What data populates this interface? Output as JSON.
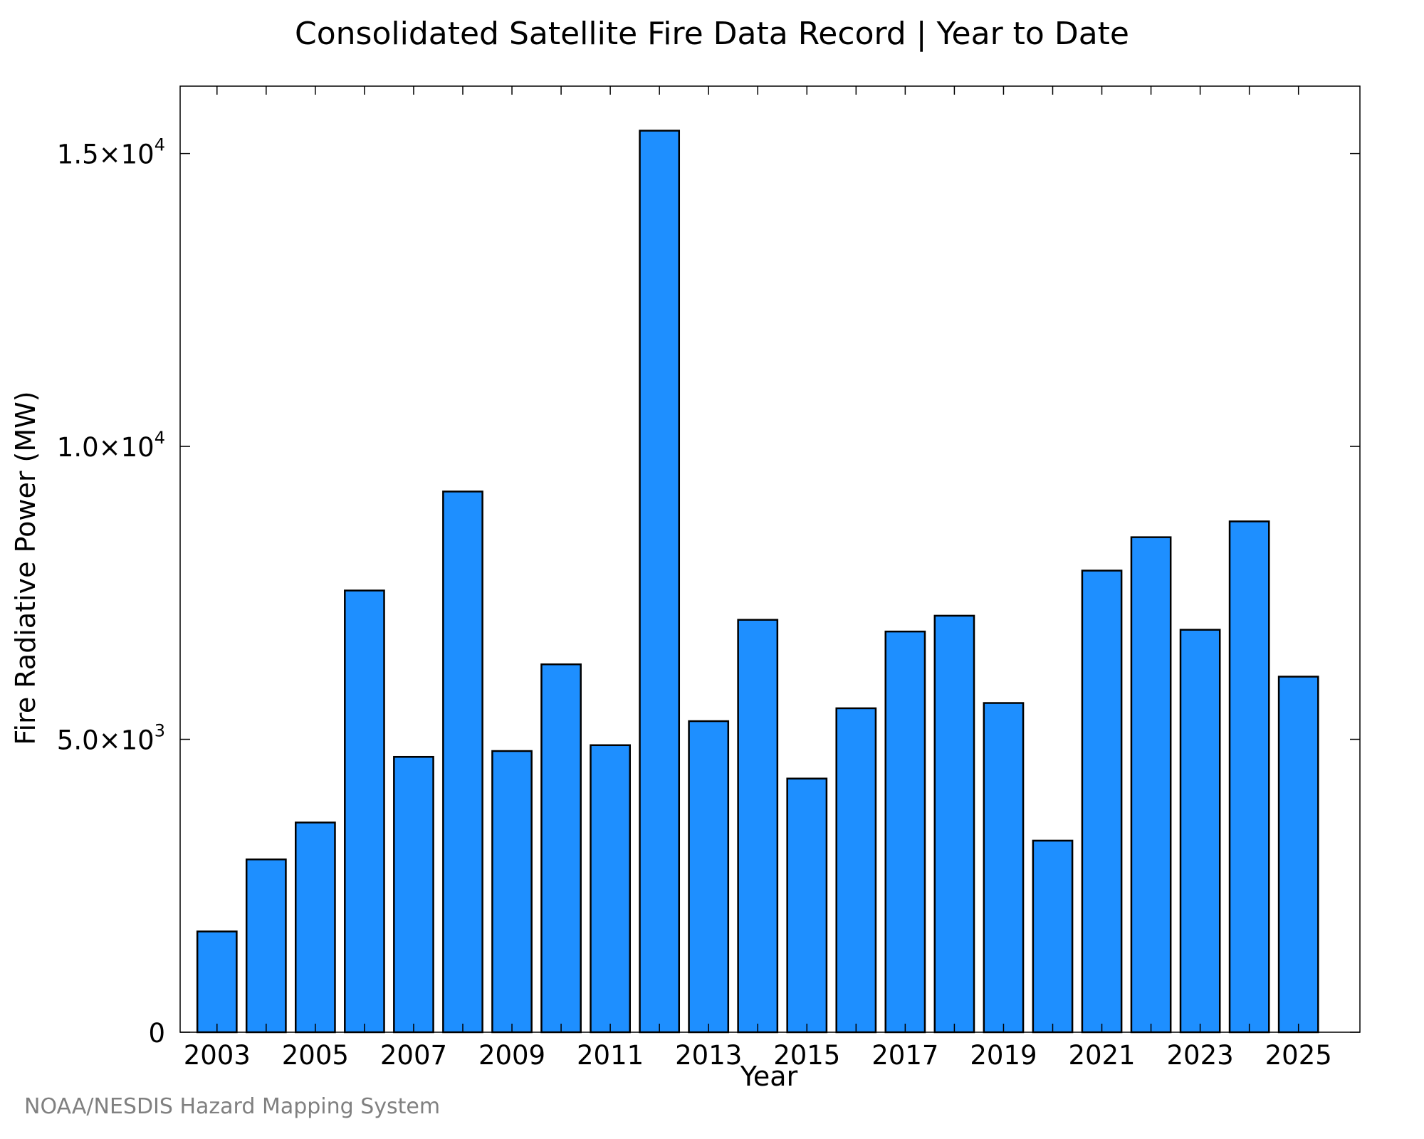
{
  "chart_data": {
    "type": "bar",
    "title": "Consolidated Satellite Fire Data Record | Year to Date",
    "xlabel": "Year",
    "ylabel": "Fire Radiative Power (MW)",
    "credit": "NOAA/NESDIS Hazard Mapping System",
    "categories": [
      "2003",
      "2004",
      "2005",
      "2006",
      "2007",
      "2008",
      "2009",
      "2010",
      "2011",
      "2012",
      "2013",
      "2014",
      "2015",
      "2016",
      "2017",
      "2018",
      "2019",
      "2020",
      "2021",
      "2022",
      "2023",
      "2024",
      "2025"
    ],
    "values": [
      1720,
      2950,
      3580,
      7540,
      4700,
      9230,
      4800,
      6280,
      4900,
      15390,
      5310,
      7040,
      4330,
      5530,
      6840,
      7110,
      5620,
      3270,
      7880,
      8450,
      6870,
      8720,
      6070
    ],
    "xticks": [
      "2003",
      "2005",
      "2007",
      "2009",
      "2011",
      "2013",
      "2015",
      "2017",
      "2019",
      "2021",
      "2023",
      "2025"
    ],
    "yticks": [
      {
        "value": 0,
        "mantissa": "0",
        "exp": ""
      },
      {
        "value": 5000,
        "mantissa": "5.0×10",
        "exp": "3"
      },
      {
        "value": 10000,
        "mantissa": "1.0×10",
        "exp": "4"
      },
      {
        "value": 15000,
        "mantissa": "1.5×10",
        "exp": "4"
      }
    ],
    "ylim": [
      0,
      16150
    ],
    "xlim": [
      2002.25,
      2026.25
    ],
    "grid": false,
    "bar_color": "#1E8FFF",
    "edge_color": "#000000"
  }
}
